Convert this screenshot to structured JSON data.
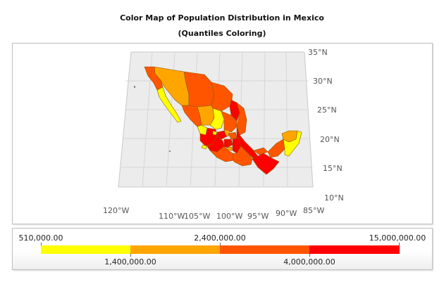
{
  "titles": {
    "main": "Color Map of Population Distribution in Mexico",
    "sub": "(Quantiles Coloring)"
  },
  "map": {
    "lat_labels": [
      "35°N",
      "30°N",
      "25°N",
      "20°N",
      "15°N",
      "10°N"
    ],
    "lon_labels": [
      "120°W",
      "110°W",
      "105°W",
      "100°W",
      "95°W",
      "90°W",
      "85°W"
    ],
    "colors": {
      "q1": "#ffff00",
      "q2": "#ffa500",
      "q3": "#ff5500",
      "q4": "#ff0000",
      "grid_fill": "#ececec",
      "grid_line": "#d4d4d4",
      "state_border": "#8a5a00"
    }
  },
  "legend": {
    "thresholds": [
      "510,000.00",
      "1,400,000.00",
      "2,400,000.00",
      "4,000,000.00",
      "15,000,000.00"
    ],
    "colors": [
      "#ffff00",
      "#ffa500",
      "#ff5500",
      "#ff0000"
    ]
  }
}
